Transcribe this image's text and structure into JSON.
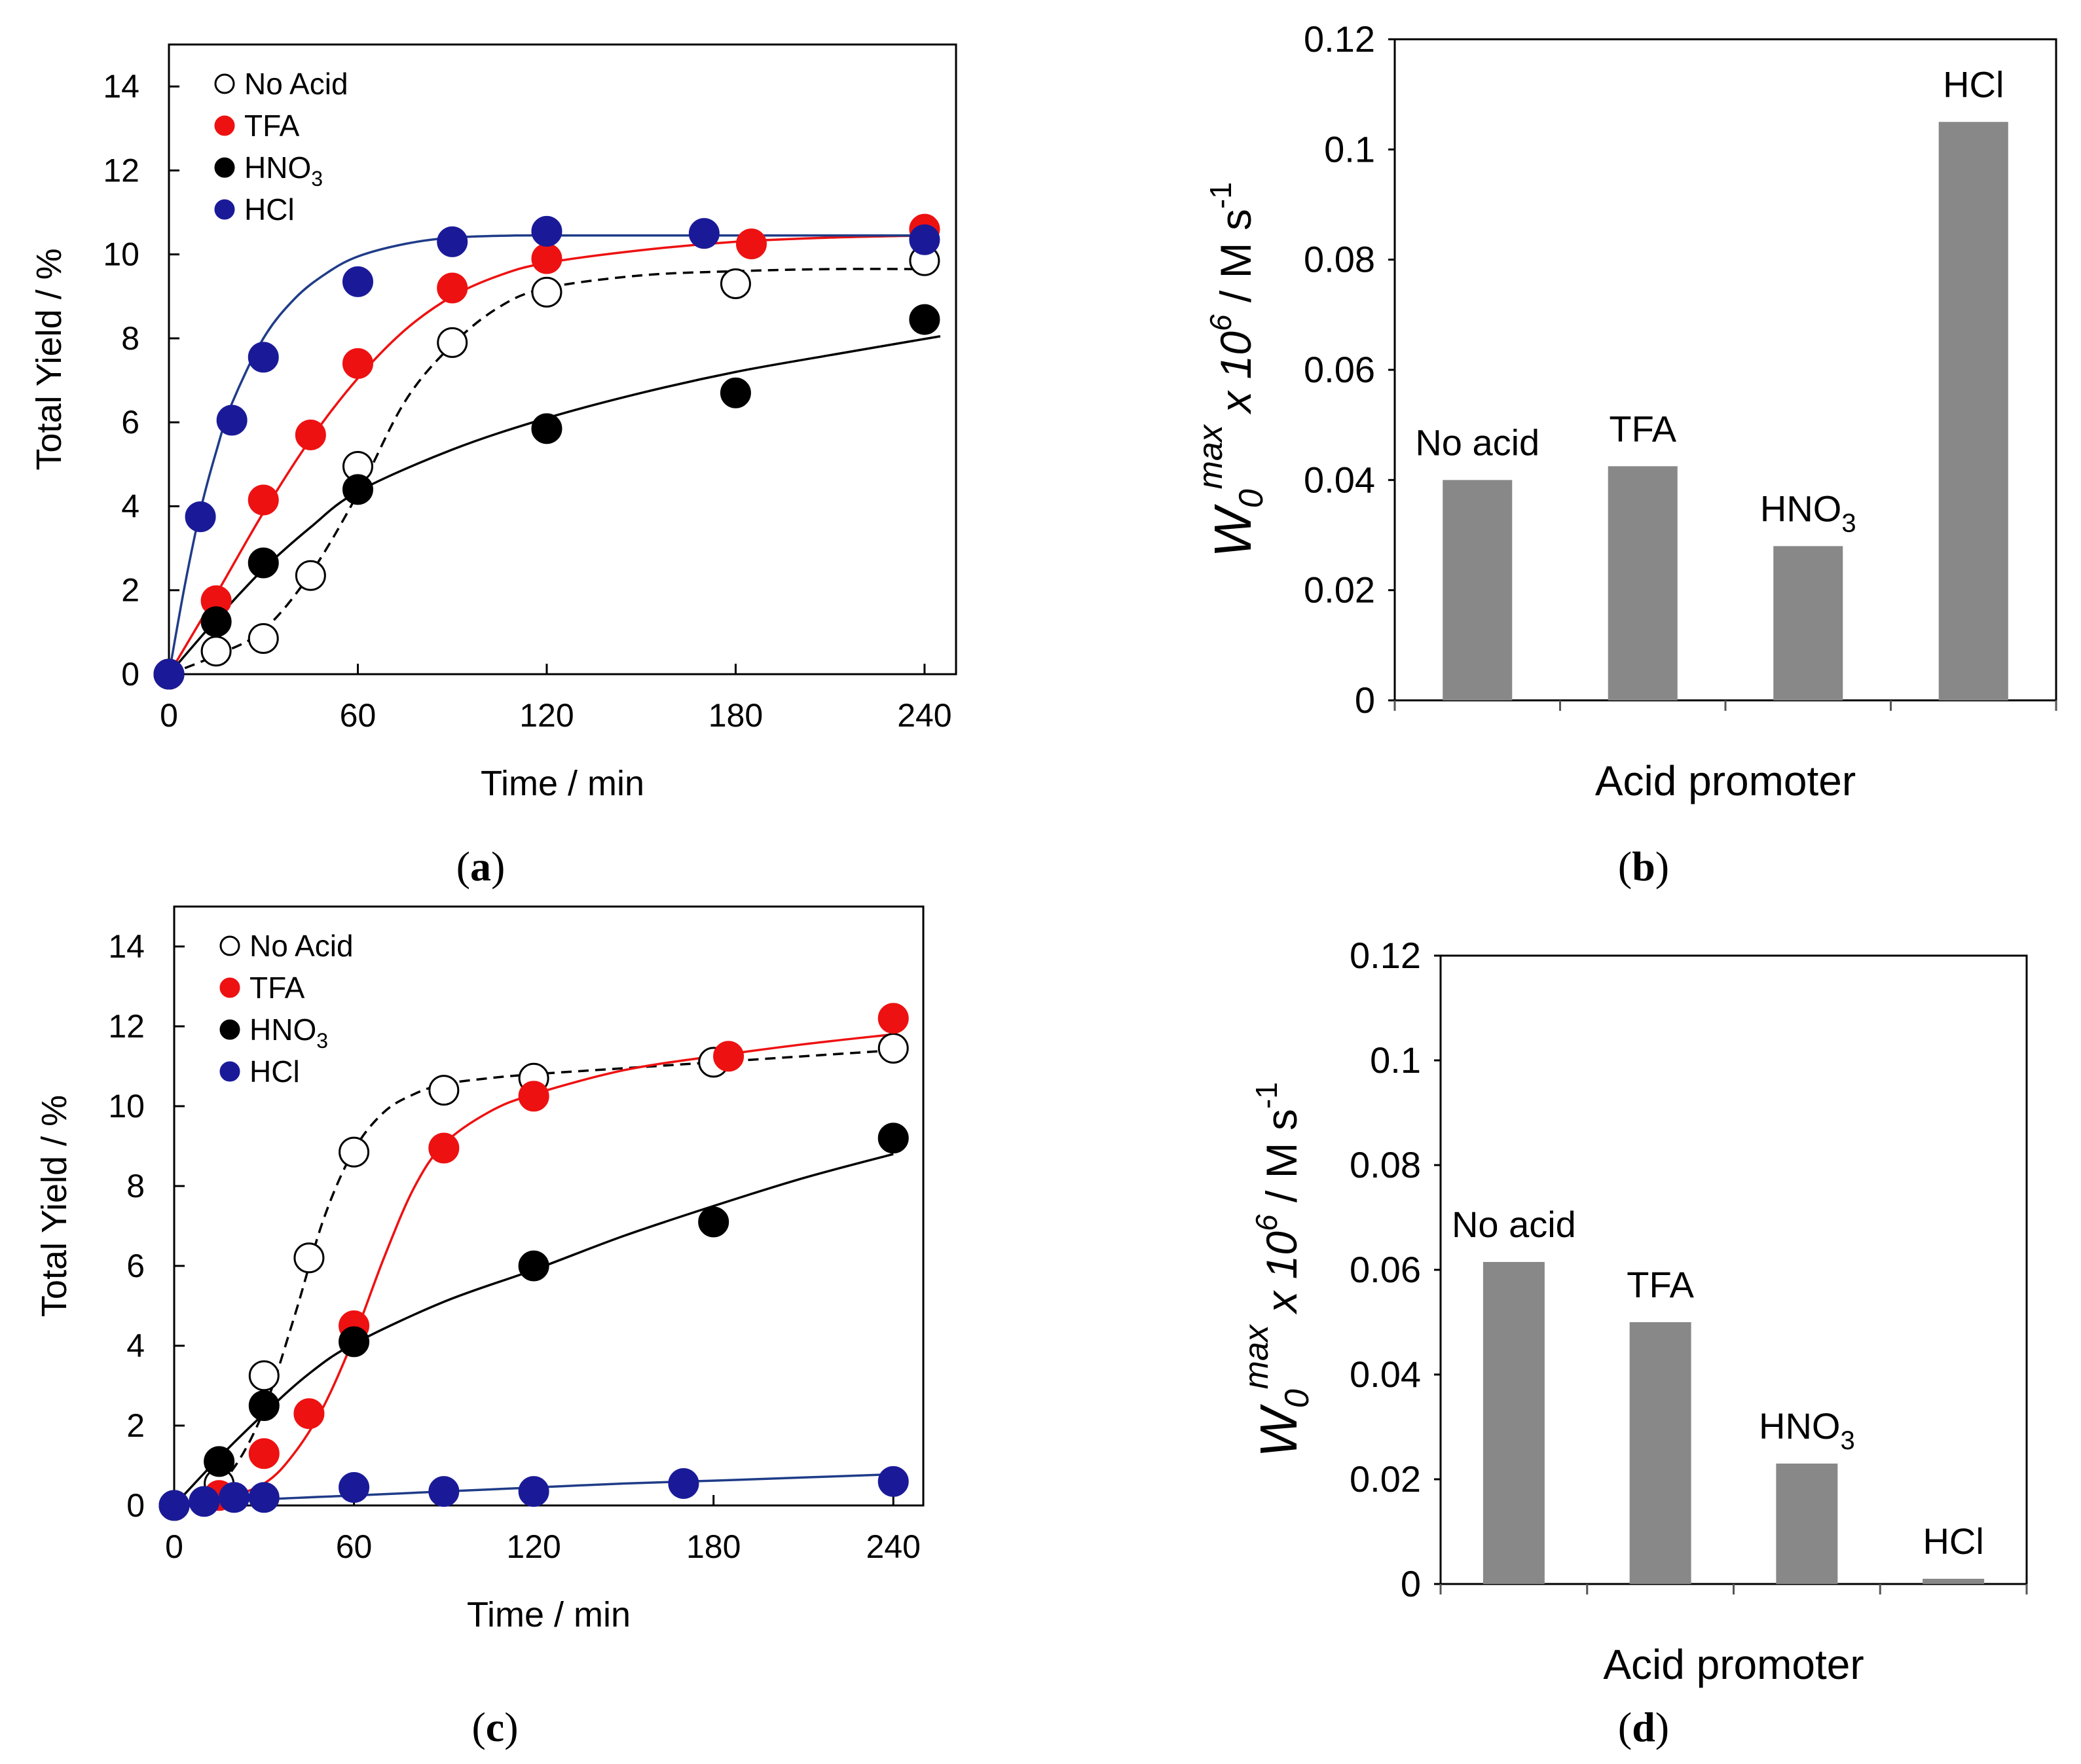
{
  "chart_data": [
    {
      "id": "a",
      "type": "scatter",
      "panel_letter": "a",
      "xlabel": "Time / min",
      "ylabel": "Total Yield / %",
      "xlim": [
        0,
        250
      ],
      "ylim": [
        0,
        15
      ],
      "xticks": [
        0,
        60,
        120,
        180,
        240
      ],
      "yticks": [
        0,
        2,
        4,
        6,
        8,
        10,
        12,
        14
      ],
      "legend_position": "top-left",
      "series": [
        {
          "name": "No Acid",
          "name_main": "No Acid",
          "name_sub": "",
          "marker": "open-circle",
          "color": "#000000",
          "line_color": "#000000",
          "line_style": "dashed",
          "x": [
            0,
            15,
            30,
            45,
            60,
            90,
            120,
            180,
            240
          ],
          "y": [
            0,
            0.55,
            0.85,
            2.35,
            4.95,
            7.9,
            9.1,
            9.3,
            9.85
          ],
          "fit_x": [
            0,
            15,
            30,
            45,
            60,
            75,
            90,
            105,
            120,
            150,
            180,
            210,
            240
          ],
          "fit_y": [
            0,
            0.45,
            1.05,
            2.4,
            4.3,
            6.5,
            7.85,
            8.75,
            9.2,
            9.5,
            9.6,
            9.65,
            9.65
          ]
        },
        {
          "name": "TFA",
          "name_main": "TFA",
          "name_sub": "",
          "marker": "filled-circle",
          "color": "#ee1111",
          "line_color": "#ee1111",
          "line_style": "solid",
          "x": [
            0,
            15,
            30,
            45,
            60,
            90,
            120,
            185,
            240
          ],
          "y": [
            0,
            1.75,
            4.15,
            5.7,
            7.4,
            9.2,
            9.9,
            10.25,
            10.6
          ],
          "fit_x": [
            0,
            15,
            30,
            45,
            60,
            75,
            90,
            105,
            120,
            150,
            180,
            210,
            240
          ],
          "fit_y": [
            0,
            1.9,
            3.85,
            5.6,
            7.05,
            8.2,
            9.0,
            9.5,
            9.8,
            10.1,
            10.3,
            10.4,
            10.45
          ]
        },
        {
          "name": "HNO3",
          "name_main": "HNO",
          "name_sub": "3",
          "marker": "filled-circle",
          "color": "#000000",
          "line_color": "#000000",
          "line_style": "solid",
          "x": [
            0,
            15,
            30,
            60,
            120,
            180,
            240
          ],
          "y": [
            0,
            1.25,
            2.65,
            4.4,
            5.85,
            6.7,
            8.45
          ],
          "fit_x": [
            0,
            15,
            30,
            45,
            60,
            90,
            120,
            150,
            180,
            210,
            245
          ],
          "fit_y": [
            0,
            1.3,
            2.5,
            3.5,
            4.35,
            5.35,
            6.1,
            6.7,
            7.2,
            7.6,
            8.05
          ]
        },
        {
          "name": "HCl",
          "name_main": "HCl",
          "name_sub": "",
          "marker": "filled-circle",
          "color": "#1a1a99",
          "line_color": "#1f3c88",
          "line_style": "solid",
          "x": [
            0,
            10,
            20,
            30,
            60,
            90,
            120,
            170,
            240
          ],
          "y": [
            0,
            3.75,
            6.05,
            7.55,
            9.35,
            10.3,
            10.55,
            10.5,
            10.35
          ],
          "fit_x": [
            0,
            5,
            10,
            15,
            20,
            30,
            40,
            50,
            60,
            75,
            90,
            110,
            130,
            160,
            200,
            240
          ],
          "fit_y": [
            0,
            2.1,
            3.9,
            5.3,
            6.45,
            8.0,
            8.95,
            9.55,
            9.95,
            10.25,
            10.4,
            10.45,
            10.45,
            10.45,
            10.45,
            10.45
          ]
        }
      ],
      "data_labels": []
    },
    {
      "id": "b",
      "type": "bar",
      "panel_letter": "b",
      "xlabel": "Acid promoter",
      "ylabel_main": "W",
      "ylabel_sub": "0",
      "ylabel_sup": "max",
      "ylabel_mid": " x  10",
      "ylabel_sup2": "6",
      "ylabel_tail": " / M s",
      "ylabel_sup3": "-1",
      "ylim": [
        0,
        0.12
      ],
      "yticks": [
        "0",
        "0.02",
        "0.04",
        "0.06",
        "0.08",
        "0.1",
        "0.12"
      ],
      "categories": [
        "No acid",
        "TFA",
        "HNO3",
        "HCl"
      ],
      "label_main": [
        "No acid",
        "TFA",
        "HNO",
        "HCl"
      ],
      "label_sub": [
        "",
        "",
        "3",
        ""
      ],
      "values": [
        0.04,
        0.0425,
        0.028,
        0.105
      ],
      "bar_color": "#888888"
    },
    {
      "id": "c",
      "type": "scatter",
      "panel_letter": "c",
      "xlabel": "Time / min",
      "ylabel": "Total Yield / %",
      "xlim": [
        0,
        250
      ],
      "ylim": [
        0,
        15
      ],
      "xticks": [
        0,
        60,
        120,
        180,
        240
      ],
      "yticks": [
        0,
        2,
        4,
        6,
        8,
        10,
        12,
        14
      ],
      "legend_position": "top-left",
      "series": [
        {
          "name": "No Acid",
          "name_main": "No Acid",
          "name_sub": "",
          "marker": "open-circle",
          "color": "#000000",
          "line_color": "#000000",
          "line_style": "dashed",
          "x": [
            0,
            15,
            30,
            45,
            60,
            90,
            120,
            180,
            240
          ],
          "y": [
            0,
            0.55,
            3.25,
            6.2,
            8.85,
            10.4,
            10.7,
            11.1,
            11.45
          ],
          "fit_x": [
            0,
            10,
            20,
            30,
            40,
            50,
            60,
            70,
            80,
            90,
            105,
            120,
            150,
            180,
            210,
            240
          ],
          "fit_y": [
            0,
            0.25,
            0.95,
            2.4,
            4.7,
            7.2,
            8.9,
            9.85,
            10.3,
            10.55,
            10.7,
            10.8,
            10.95,
            11.1,
            11.25,
            11.4
          ]
        },
        {
          "name": "TFA",
          "name_main": "TFA",
          "name_sub": "",
          "marker": "filled-circle",
          "color": "#ee1111",
          "line_color": "#ee1111",
          "line_style": "solid",
          "x": [
            15,
            30,
            45,
            60,
            90,
            120,
            185,
            240
          ],
          "y": [
            0.25,
            1.3,
            2.3,
            4.5,
            8.95,
            10.25,
            11.25,
            12.2
          ],
          "fit_x": [
            0,
            15,
            30,
            40,
            50,
            60,
            70,
            80,
            90,
            105,
            120,
            150,
            180,
            210,
            240
          ],
          "fit_y": [
            0,
            0.15,
            0.55,
            1.3,
            2.5,
            4.2,
            6.2,
            7.95,
            9.05,
            9.85,
            10.3,
            10.9,
            11.25,
            11.55,
            11.8
          ]
        },
        {
          "name": "HNO3",
          "name_main": "HNO",
          "name_sub": "3",
          "marker": "filled-circle",
          "color": "#000000",
          "line_color": "#000000",
          "line_style": "solid",
          "x": [
            0,
            15,
            30,
            60,
            120,
            180,
            240
          ],
          "y": [
            0,
            1.1,
            2.5,
            4.1,
            6.0,
            7.1,
            9.2
          ],
          "fit_x": [
            0,
            15,
            30,
            45,
            60,
            90,
            120,
            150,
            180,
            210,
            240
          ],
          "fit_y": [
            0,
            1.2,
            2.3,
            3.3,
            4.05,
            5.1,
            5.9,
            6.75,
            7.5,
            8.2,
            8.8
          ]
        },
        {
          "name": "HCl",
          "name_main": "HCl",
          "name_sub": "",
          "marker": "filled-circle",
          "color": "#1a1a99",
          "line_color": "#1f3c88",
          "line_style": "solid",
          "x": [
            0,
            10,
            20,
            30,
            60,
            90,
            120,
            170,
            240
          ],
          "y": [
            0,
            0.1,
            0.2,
            0.2,
            0.45,
            0.35,
            0.35,
            0.55,
            0.6
          ],
          "fit_x": [
            0,
            30,
            60,
            90,
            120,
            150,
            180,
            210,
            240
          ],
          "fit_y": [
            0,
            0.15,
            0.25,
            0.35,
            0.45,
            0.55,
            0.62,
            0.7,
            0.78
          ]
        }
      ]
    },
    {
      "id": "d",
      "type": "bar",
      "panel_letter": "d",
      "xlabel": "Acid promoter",
      "ylabel_main": "W",
      "ylabel_sub": "0",
      "ylabel_sup": "max",
      "ylabel_mid": " x  10",
      "ylabel_sup2": "6",
      "ylabel_tail": " / M s",
      "ylabel_sup3": "-1",
      "ylim": [
        0,
        0.12
      ],
      "yticks": [
        "0",
        "0.02",
        "0.04",
        "0.06",
        "0.08",
        "0.1",
        "0.12"
      ],
      "categories": [
        "No acid",
        "TFA",
        "HNO3",
        "HCl"
      ],
      "label_main": [
        "No acid",
        "TFA",
        "HNO",
        "HCl"
      ],
      "label_sub": [
        "",
        "",
        "3",
        ""
      ],
      "values": [
        0.0615,
        0.05,
        0.023,
        0.001
      ],
      "bar_color": "#888888"
    }
  ]
}
